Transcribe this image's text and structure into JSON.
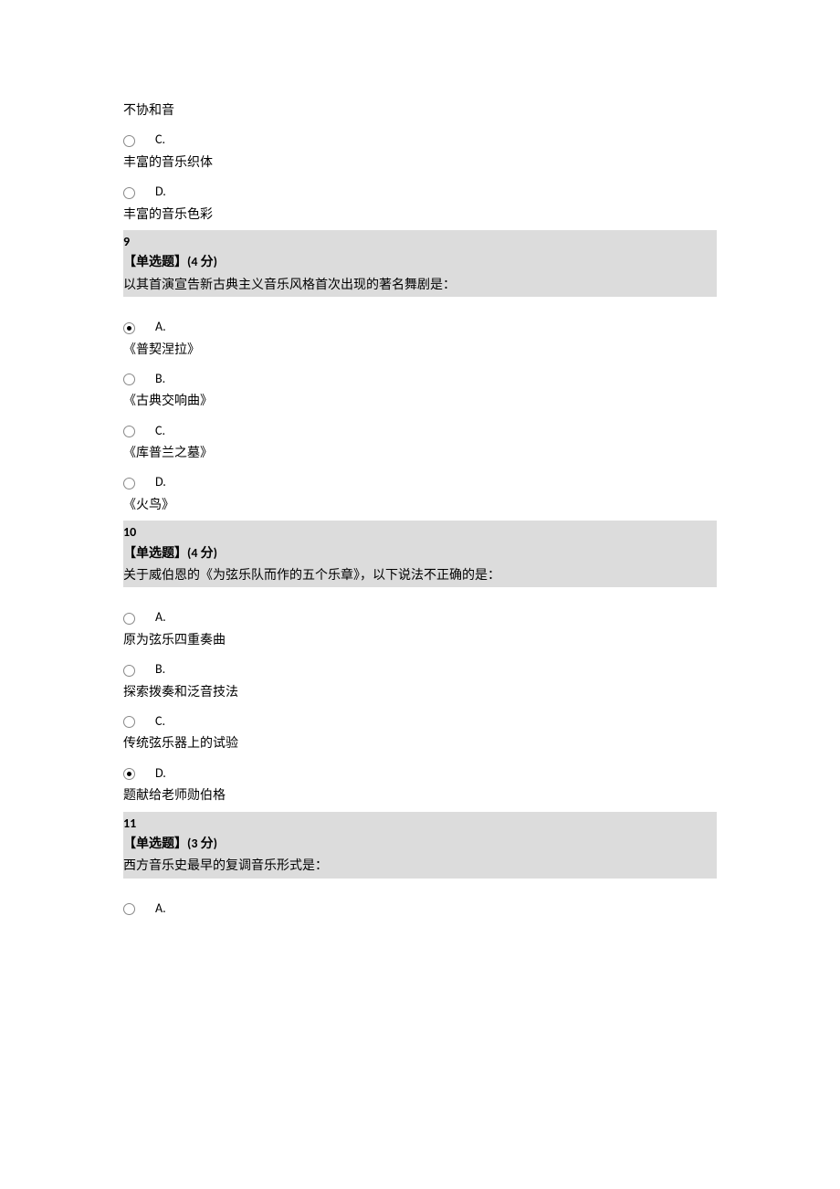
{
  "q8_partial": {
    "opt_b_text": "不协和音",
    "opt_c_letter": "C.",
    "opt_c_text": "丰富的音乐织体",
    "opt_d_letter": "D.",
    "opt_d_text": "丰富的音乐色彩"
  },
  "q9": {
    "number": "9",
    "type_prefix": "【单选题】",
    "type_points_open": "(",
    "type_points_num": "4",
    "type_points_unit": " 分",
    "type_points_close": ")",
    "text": "以其首演宣告新古典主义音乐风格首次出现的著名舞剧是：",
    "opt_a_letter": "A.",
    "opt_a_text": "《普契涅拉》",
    "opt_b_letter": "B.",
    "opt_b_text": "《古典交响曲》",
    "opt_c_letter": "C.",
    "opt_c_text": "《库普兰之墓》",
    "opt_d_letter": "D.",
    "opt_d_text": "《火鸟》",
    "selected": "A"
  },
  "q10": {
    "number": "10",
    "type_prefix": "【单选题】",
    "type_points_open": "(",
    "type_points_num": "4",
    "type_points_unit": " 分",
    "type_points_close": ")",
    "text": "关于威伯恩的《为弦乐队而作的五个乐章》，以下说法不正确的是：",
    "opt_a_letter": "A.",
    "opt_a_text": "原为弦乐四重奏曲",
    "opt_b_letter": "B.",
    "opt_b_text": "探索拨奏和泛音技法",
    "opt_c_letter": "C.",
    "opt_c_text": "传统弦乐器上的试验",
    "opt_d_letter": "D.",
    "opt_d_text": "题献给老师勋伯格",
    "selected": "D"
  },
  "q11": {
    "number": "11",
    "type_prefix": "【单选题】",
    "type_points_open": "(",
    "type_points_num": "3",
    "type_points_unit": " 分",
    "type_points_close": ")",
    "text": "西方音乐史最早的复调音乐形式是：",
    "opt_a_letter": "A."
  }
}
